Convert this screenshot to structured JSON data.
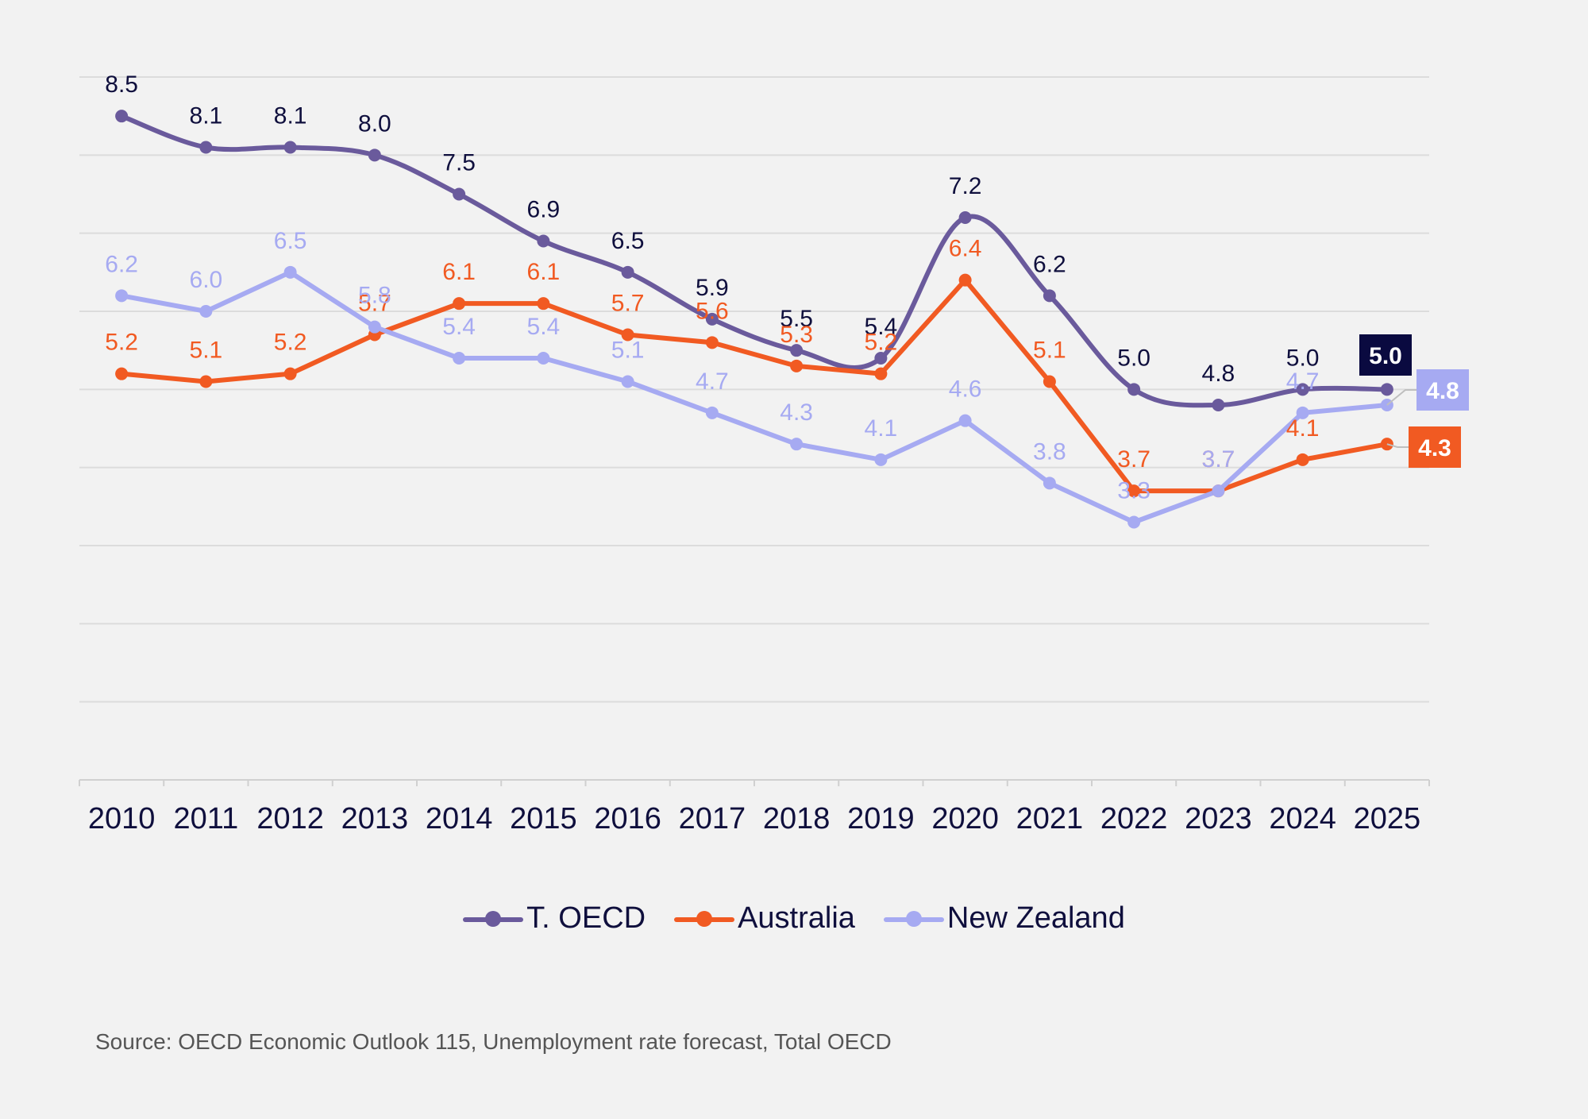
{
  "chart_data": {
    "type": "line",
    "title": "",
    "xlabel": "",
    "ylabel": "",
    "categories": [
      "2010",
      "2011",
      "2012",
      "2013",
      "2014",
      "2015",
      "2016",
      "2017",
      "2018",
      "2019",
      "2020",
      "2021",
      "2022",
      "2023",
      "2024",
      "2025"
    ],
    "ylim": [
      0,
      9
    ],
    "grid": true,
    "legend_position": "bottom",
    "series": [
      {
        "name": "T. OECD",
        "color": "#6a5a9c",
        "label_color": "#0f0f3d",
        "badge_color": "#0a0a40",
        "badge_text_color": "#ffffff",
        "values": [
          8.5,
          8.1,
          8.1,
          8.0,
          7.5,
          6.9,
          6.5,
          5.9,
          5.5,
          5.4,
          7.2,
          6.2,
          5.0,
          4.8,
          5.0,
          5.0
        ]
      },
      {
        "name": "Australia",
        "color": "#f15a22",
        "label_color": "#f15a22",
        "badge_color": "#f15a22",
        "badge_text_color": "#ffffff",
        "values": [
          5.2,
          5.1,
          5.2,
          5.7,
          6.1,
          6.1,
          5.7,
          5.6,
          5.3,
          5.2,
          6.4,
          5.1,
          3.7,
          3.7,
          4.1,
          4.3
        ]
      },
      {
        "name": "New Zealand",
        "color": "#a6aaf2",
        "label_color": "#a6aaf2",
        "badge_color": "#a6aaf2",
        "badge_text_color": "#ffffff",
        "values": [
          6.2,
          6.0,
          6.5,
          5.8,
          5.4,
          5.4,
          5.1,
          4.7,
          4.3,
          4.1,
          4.6,
          3.8,
          3.3,
          3.7,
          4.7,
          4.8
        ]
      }
    ],
    "end_labels": [
      "5.0",
      "4.3",
      "4.8"
    ]
  },
  "source": "Source: OECD Economic Outlook 115, Unemployment rate forecast, Total OECD"
}
